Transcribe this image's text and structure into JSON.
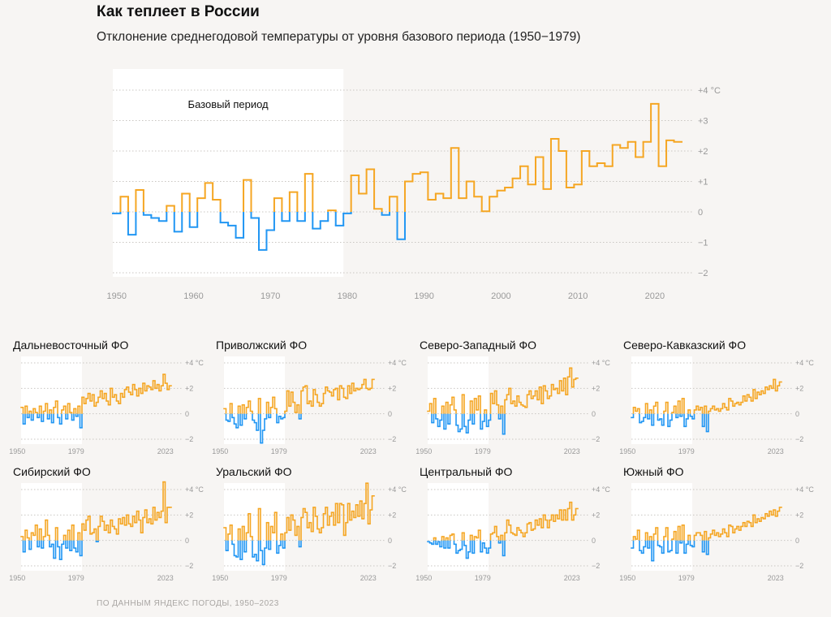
{
  "title": "Как теплеет в России",
  "subtitle": "Отклонение среднегодовой температуры от уровня базового периода (1950−1979)",
  "source": "ПО ДАННЫМ ЯНДЕКС ПОГОДЫ, 1950–2023",
  "colors": {
    "warm": "#f5a623",
    "cold": "#2196f3",
    "base_band": "#ffffff",
    "grid": "#c9c6c2",
    "tick_text": "#999999"
  },
  "chart_data": [
    {
      "id": "russia",
      "type": "line",
      "step": true,
      "title": "Как теплеет в России",
      "annotation": "Базовый период",
      "base_period": [
        1950,
        1979
      ],
      "xlim": [
        1949.5,
        2023.5
      ],
      "ylim": [
        -2,
        4
      ],
      "x_ticks": [
        1950,
        1960,
        1970,
        1980,
        1990,
        2000,
        2010,
        2020
      ],
      "y_ticks": [
        {
          "v": 4,
          "label": "+4 °C"
        },
        {
          "v": 3,
          "label": "+3"
        },
        {
          "v": 2,
          "label": "+2"
        },
        {
          "v": 1,
          "label": "+1"
        },
        {
          "v": 0,
          "label": "0"
        },
        {
          "v": -1,
          "label": "−1"
        },
        {
          "v": -2,
          "label": "−2"
        }
      ],
      "x": [
        1950,
        1951,
        1952,
        1953,
        1954,
        1955,
        1956,
        1957,
        1958,
        1959,
        1960,
        1961,
        1962,
        1963,
        1964,
        1965,
        1966,
        1967,
        1968,
        1969,
        1970,
        1971,
        1972,
        1973,
        1974,
        1975,
        1976,
        1977,
        1978,
        1979,
        1980,
        1981,
        1982,
        1983,
        1984,
        1985,
        1986,
        1987,
        1988,
        1989,
        1990,
        1991,
        1992,
        1993,
        1994,
        1995,
        1996,
        1997,
        1998,
        1999,
        2000,
        2001,
        2002,
        2003,
        2004,
        2005,
        2006,
        2007,
        2008,
        2009,
        2010,
        2011,
        2012,
        2013,
        2014,
        2015,
        2016,
        2017,
        2018,
        2019,
        2020,
        2021,
        2022,
        2023
      ],
      "values": [
        -0.05,
        0.5,
        -0.75,
        0.72,
        -0.1,
        -0.2,
        -0.3,
        0.2,
        -0.65,
        0.6,
        -0.5,
        0.45,
        0.95,
        0.4,
        -0.35,
        -0.45,
        -0.85,
        1.05,
        -0.2,
        -1.25,
        -0.6,
        0.45,
        -0.3,
        0.65,
        -0.3,
        1.25,
        -0.55,
        -0.3,
        0.05,
        -0.45,
        -0.05,
        1.2,
        0.6,
        1.4,
        0.1,
        -0.1,
        0.5,
        -0.9,
        1.0,
        1.25,
        1.3,
        0.4,
        0.6,
        0.45,
        2.1,
        0.45,
        1.0,
        0.5,
        0.02,
        0.5,
        0.7,
        0.8,
        1.1,
        1.5,
        0.9,
        1.8,
        0.75,
        2.4,
        2.0,
        0.8,
        0.9,
        2.0,
        1.5,
        1.6,
        1.5,
        2.2,
        2.1,
        2.3,
        1.8,
        2.3,
        3.55,
        1.5,
        2.35,
        2.3
      ]
    },
    {
      "id": "fe",
      "type": "line",
      "step": true,
      "title": "Дальневосточный ФО",
      "base_period": [
        1950,
        1979
      ],
      "xlim": [
        1949.5,
        2023.5
      ],
      "ylim": [
        -2,
        4
      ],
      "x_tick_labels": [
        "1950",
        "1979",
        "2023"
      ],
      "y_ticks": [
        {
          "v": 4,
          "label": "+4 °C"
        },
        {
          "v": 2,
          "label": "+2"
        },
        {
          "v": 0,
          "label": "0"
        },
        {
          "v": -2,
          "label": "−2"
        }
      ],
      "x_start": 1950,
      "values": [
        0.5,
        -0.8,
        0.6,
        -0.3,
        0.2,
        -0.5,
        0.4,
        0.1,
        -0.3,
        0.6,
        -0.6,
        0.2,
        0.8,
        -0.4,
        0.3,
        -0.7,
        0.5,
        1.0,
        -0.3,
        -0.8,
        0.3,
        0.6,
        -0.4,
        0.8,
        0.1,
        -0.5,
        0.4,
        -0.2,
        0.6,
        -1.1,
        1.3,
        0.8,
        1.2,
        1.6,
        1.0,
        1.5,
        0.6,
        0.9,
        1.3,
        1.8,
        1.2,
        1.6,
        1.0,
        0.7,
        2.0,
        1.3,
        1.5,
        1.0,
        0.8,
        1.6,
        1.3,
        1.9,
        2.1,
        1.7,
        1.5,
        2.3,
        1.9,
        1.4,
        2.0,
        1.6,
        2.4,
        1.8,
        2.2,
        2.1,
        1.9,
        2.6,
        2.0,
        2.3,
        1.8,
        2.2,
        3.1,
        2.4,
        1.9,
        2.2
      ]
    },
    {
      "id": "volga",
      "type": "line",
      "step": true,
      "title": "Приволжский ФО",
      "base_period": [
        1950,
        1979
      ],
      "xlim": [
        1949.5,
        2023.5
      ],
      "ylim": [
        -2,
        4
      ],
      "x_tick_labels": [
        "1950",
        "1979",
        "2023"
      ],
      "y_ticks": [
        {
          "v": 4,
          "label": "+4 °C"
        },
        {
          "v": 2,
          "label": "+2"
        },
        {
          "v": 0,
          "label": "0"
        },
        {
          "v": -2,
          "label": "−2"
        }
      ],
      "x_start": 1950,
      "values": [
        0.4,
        -0.5,
        -0.6,
        0.8,
        -0.3,
        -0.8,
        -1.1,
        0.6,
        -0.9,
        0.7,
        -0.4,
        0.5,
        1.0,
        0.2,
        -0.5,
        -0.7,
        -1.3,
        1.2,
        -2.3,
        -1.3,
        -0.4,
        0.9,
        -0.3,
        0.5,
        1.3,
        0.4,
        -0.7,
        -0.2,
        -0.4,
        -0.3,
        0.2,
        1.8,
        0.6,
        1.7,
        0.9,
        0.1,
        0.7,
        -0.4,
        1.8,
        2.1,
        2.2,
        0.8,
        1.0,
        0.6,
        1.9,
        1.5,
        0.9,
        0.6,
        0.8,
        1.6,
        2.1,
        1.8,
        1.7,
        1.4,
        1.9,
        2.0,
        1.1,
        2.2,
        2.0,
        1.3,
        1.2,
        2.2,
        1.6,
        2.4,
        1.8,
        2.0,
        1.9,
        2.0,
        2.3,
        2.7,
        2.0,
        1.9,
        2.0,
        2.7
      ]
    },
    {
      "id": "nw",
      "type": "line",
      "step": true,
      "title": "Северо-Западный ФО",
      "base_period": [
        1950,
        1979
      ],
      "xlim": [
        1949.5,
        2023.5
      ],
      "ylim": [
        -2,
        4
      ],
      "x_tick_labels": [
        "1950",
        "1979",
        "2023"
      ],
      "y_ticks": [
        {
          "v": 4,
          "label": "+4 °C"
        },
        {
          "v": 2,
          "label": "+2"
        },
        {
          "v": 0,
          "label": "0"
        },
        {
          "v": -2,
          "label": "−2"
        }
      ],
      "x_start": 1950,
      "values": [
        0.2,
        0.8,
        -0.7,
        1.2,
        -0.4,
        -1.0,
        -0.5,
        0.6,
        -1.2,
        0.9,
        -0.8,
        0.7,
        1.3,
        0.3,
        -0.9,
        -1.4,
        -1.2,
        1.5,
        -1.0,
        -1.5,
        -0.5,
        1.0,
        -0.8,
        1.2,
        0.3,
        1.4,
        -1.2,
        -0.6,
        0.3,
        -1.0,
        -0.5,
        1.6,
        0.8,
        1.8,
        0.7,
        -0.4,
        0.6,
        -1.6,
        1.1,
        1.5,
        2.0,
        0.8,
        1.0,
        0.6,
        1.4,
        0.9,
        0.7,
        0.6,
        0.5,
        1.5,
        1.8,
        1.2,
        1.4,
        1.8,
        1.1,
        2.1,
        0.8,
        2.2,
        1.8,
        1.2,
        1.4,
        2.3,
        1.9,
        2.0,
        1.6,
        2.6,
        1.8,
        2.8,
        1.5,
        2.9,
        3.6,
        2.1,
        2.7,
        2.8
      ]
    },
    {
      "id": "nc",
      "type": "line",
      "step": true,
      "title": "Северо-Кавказский ФО",
      "base_period": [
        1950,
        1979
      ],
      "xlim": [
        1949.5,
        2023.5
      ],
      "ylim": [
        -2,
        4
      ],
      "x_tick_labels": [
        "1950",
        "1979",
        "2023"
      ],
      "y_ticks": [
        {
          "v": 4,
          "label": "+4 °C"
        },
        {
          "v": 2,
          "label": "+2"
        },
        {
          "v": 0,
          "label": "0"
        },
        {
          "v": -2,
          "label": "−2"
        }
      ],
      "x_start": 1950,
      "values": [
        -0.3,
        0.5,
        0.2,
        0.4,
        -0.7,
        -0.6,
        -0.3,
        0.8,
        -0.4,
        0.3,
        -0.9,
        0.6,
        0.9,
        -0.5,
        -0.4,
        -0.9,
        0.2,
        0.9,
        -1.0,
        -0.5,
        0.1,
        0.6,
        -0.3,
        1.0,
        -0.2,
        1.2,
        -1.0,
        -0.4,
        0.3,
        -0.2,
        -0.4,
        0.3,
        0.6,
        0.3,
        0.5,
        -1.0,
        0.6,
        -1.4,
        0.2,
        0.4,
        0.6,
        0.3,
        0.4,
        0.2,
        0.4,
        0.8,
        0.5,
        0.3,
        1.2,
        1.0,
        0.6,
        0.8,
        0.9,
        0.7,
        0.9,
        1.4,
        1.0,
        1.5,
        1.3,
        1.0,
        1.9,
        1.2,
        1.7,
        1.5,
        1.8,
        1.6,
        2.1,
        1.9,
        2.2,
        2.0,
        2.7,
        1.8,
        2.2,
        2.5
      ]
    },
    {
      "id": "sib",
      "type": "line",
      "step": true,
      "title": "Сибирский ФО",
      "base_period": [
        1950,
        1979
      ],
      "xlim": [
        1949.5,
        2023.5
      ],
      "ylim": [
        -2,
        4
      ],
      "x_tick_labels": [
        "1950",
        "1979",
        "2023"
      ],
      "y_ticks": [
        {
          "v": 4,
          "label": "+4 °C"
        },
        {
          "v": 2,
          "label": "+2"
        },
        {
          "v": 0,
          "label": "0"
        },
        {
          "v": -2,
          "label": "−2"
        }
      ],
      "x_start": 1950,
      "values": [
        0.3,
        -0.9,
        0.8,
        0.2,
        -0.7,
        0.6,
        0.4,
        1.2,
        -0.5,
        0.9,
        -0.6,
        0.3,
        1.6,
        0.4,
        -0.5,
        -0.3,
        -1.4,
        1.0,
        -0.5,
        -1.5,
        -0.3,
        0.4,
        -0.6,
        0.8,
        -0.8,
        1.2,
        -0.6,
        -0.9,
        0.6,
        -1.2,
        1.3,
        0.8,
        1.6,
        1.9,
        0.5,
        0.6,
        0.9,
        -0.1,
        1.1,
        1.9,
        1.5,
        0.8,
        1.2,
        0.6,
        1.6,
        1.1,
        0.9,
        0.5,
        1.7,
        1.3,
        1.8,
        1.2,
        2.0,
        1.3,
        1.1,
        1.9,
        1.4,
        2.3,
        1.6,
        0.6,
        1.8,
        2.4,
        1.4,
        1.7,
        1.3,
        2.6,
        1.6,
        2.2,
        1.8,
        2.3,
        4.6,
        1.4,
        2.6,
        2.6
      ]
    },
    {
      "id": "ural",
      "type": "line",
      "step": true,
      "title": "Уральский ФО",
      "base_period": [
        1950,
        1979
      ],
      "xlim": [
        1949.5,
        2023.5
      ],
      "ylim": [
        -2,
        4
      ],
      "x_tick_labels": [
        "1950",
        "1979",
        "2023"
      ],
      "y_ticks": [
        {
          "v": 4,
          "label": "+4 °C"
        },
        {
          "v": 2,
          "label": "+2"
        },
        {
          "v": 0,
          "label": "0"
        },
        {
          "v": -2,
          "label": "−2"
        }
      ],
      "x_start": 1950,
      "values": [
        1.0,
        -0.8,
        0.5,
        1.2,
        -0.3,
        -1.2,
        -1.3,
        0.9,
        -1.5,
        1.1,
        -0.9,
        0.6,
        2.1,
        0.3,
        -1.3,
        -1.1,
        -1.6,
        2.5,
        -0.8,
        -1.9,
        -0.6,
        1.4,
        -0.7,
        1.1,
        0.6,
        2.2,
        -1.0,
        -0.4,
        0.5,
        -0.6,
        0.6,
        1.8,
        0.8,
        2.0,
        1.6,
        0.4,
        1.1,
        -0.5,
        1.8,
        2.5,
        2.2,
        1.0,
        1.4,
        0.7,
        2.6,
        1.9,
        0.9,
        0.6,
        1.0,
        2.1,
        2.6,
        1.2,
        1.9,
        2.2,
        1.2,
        2.9,
        1.4,
        2.9,
        2.8,
        0.4,
        1.4,
        2.9,
        1.6,
        2.3,
        1.8,
        2.8,
        1.9,
        3.1,
        1.7,
        2.9,
        4.5,
        1.3,
        2.4,
        3.5
      ]
    },
    {
      "id": "central",
      "type": "line",
      "step": true,
      "title": "Центральный ФО",
      "base_period": [
        1950,
        1979
      ],
      "xlim": [
        1949.5,
        2023.5
      ],
      "ylim": [
        -2,
        4
      ],
      "x_tick_labels": [
        "1950",
        "1979",
        "2023"
      ],
      "y_ticks": [
        {
          "v": 4,
          "label": "+4 °C"
        },
        {
          "v": 2,
          "label": "+2"
        },
        {
          "v": 0,
          "label": "0"
        },
        {
          "v": -2,
          "label": "−2"
        }
      ],
      "x_start": 1950,
      "values": [
        -0.1,
        -0.2,
        -0.3,
        0.2,
        -0.3,
        -0.1,
        -0.5,
        0.3,
        -0.6,
        0.2,
        -0.6,
        0.4,
        0.5,
        -0.3,
        -1.0,
        -0.8,
        -0.7,
        0.6,
        -0.4,
        -1.4,
        -0.9,
        0.4,
        -1.0,
        0.3,
        0.2,
        0.8,
        -0.9,
        -0.2,
        -0.6,
        -1.0,
        -0.6,
        0.5,
        0.6,
        1.1,
        0.3,
        -0.2,
        0.4,
        -1.2,
        0.6,
        1.6,
        1.2,
        0.6,
        0.5,
        0.4,
        1.0,
        0.8,
        0.6,
        0.3,
        0.6,
        1.3,
        1.4,
        0.8,
        0.9,
        1.6,
        1.2,
        1.7,
        1.0,
        2.0,
        1.6,
        1.0,
        1.6,
        2.0,
        1.5,
        2.0,
        1.7,
        2.4,
        1.6,
        2.4,
        1.6,
        2.5,
        3.0,
        1.6,
        2.0,
        2.5
      ]
    },
    {
      "id": "south",
      "type": "line",
      "step": true,
      "title": "Южный ФО",
      "base_period": [
        1950,
        1979
      ],
      "xlim": [
        1949.5,
        2023.5
      ],
      "ylim": [
        -2,
        4
      ],
      "x_tick_labels": [
        "1950",
        "1979",
        "2023"
      ],
      "y_ticks": [
        {
          "v": 4,
          "label": "+4 °C"
        },
        {
          "v": 2,
          "label": "+2"
        },
        {
          "v": 0,
          "label": "0"
        },
        {
          "v": -2,
          "label": "−2"
        }
      ],
      "x_start": 1950,
      "values": [
        -0.6,
        0.3,
        0.1,
        0.8,
        -0.8,
        -1.0,
        -0.5,
        0.6,
        -0.6,
        0.3,
        -1.6,
        0.5,
        1.0,
        -0.4,
        -0.5,
        -1.0,
        0.3,
        1.0,
        -0.9,
        -0.8,
        0.1,
        0.7,
        -1.0,
        1.1,
        -0.2,
        1.2,
        -1.0,
        -0.3,
        0.4,
        -0.4,
        -0.5,
        0.4,
        0.6,
        0.6,
        0.4,
        -0.9,
        0.7,
        -1.1,
        0.2,
        0.5,
        0.8,
        0.4,
        0.6,
        0.3,
        0.5,
        0.9,
        0.6,
        0.3,
        1.2,
        1.1,
        0.6,
        0.9,
        1.1,
        0.8,
        1.1,
        1.4,
        1.1,
        1.5,
        1.4,
        1.1,
        2.0,
        1.4,
        1.7,
        1.5,
        1.8,
        1.7,
        2.1,
        1.9,
        2.3,
        2.0,
        2.4,
        1.9,
        2.3,
        2.6
      ]
    }
  ]
}
